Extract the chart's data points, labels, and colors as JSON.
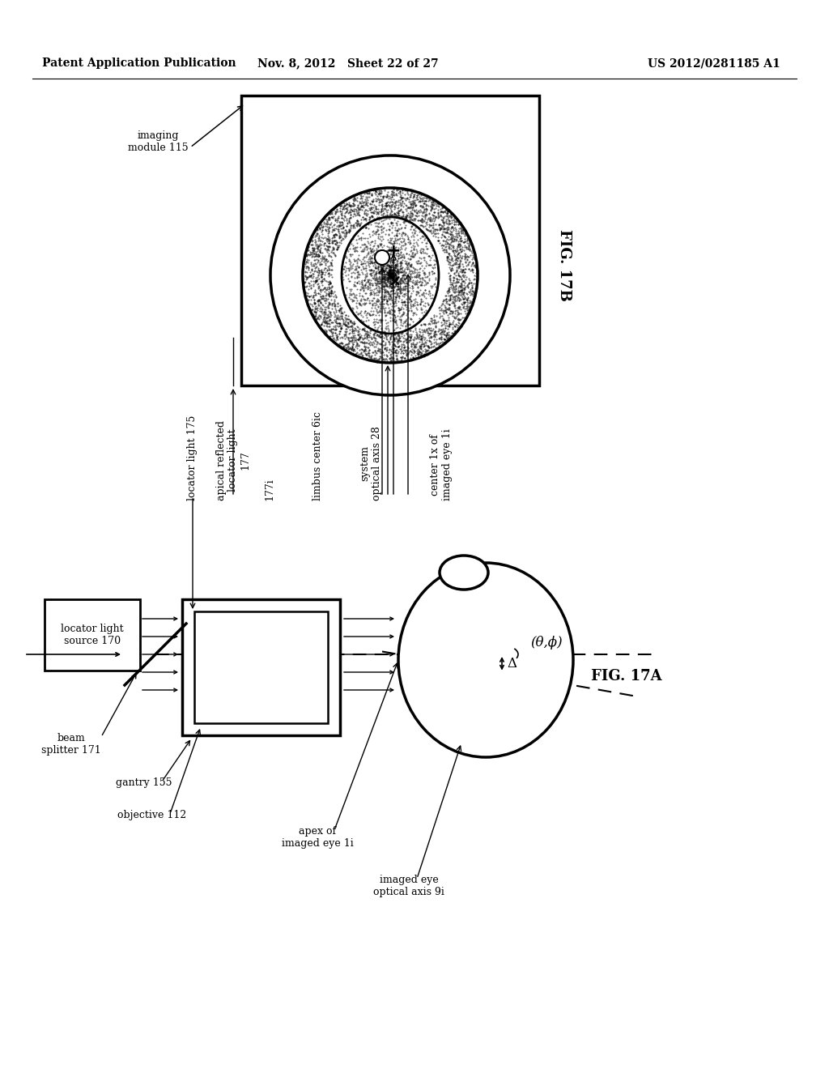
{
  "header_left": "Patent Application Publication",
  "header_mid": "Nov. 8, 2012   Sheet 22 of 27",
  "header_right": "US 2012/0281185 A1",
  "fig17a_label": "FIG. 17A",
  "fig17b_label": "FIG. 17B",
  "bg_color": "#ffffff"
}
